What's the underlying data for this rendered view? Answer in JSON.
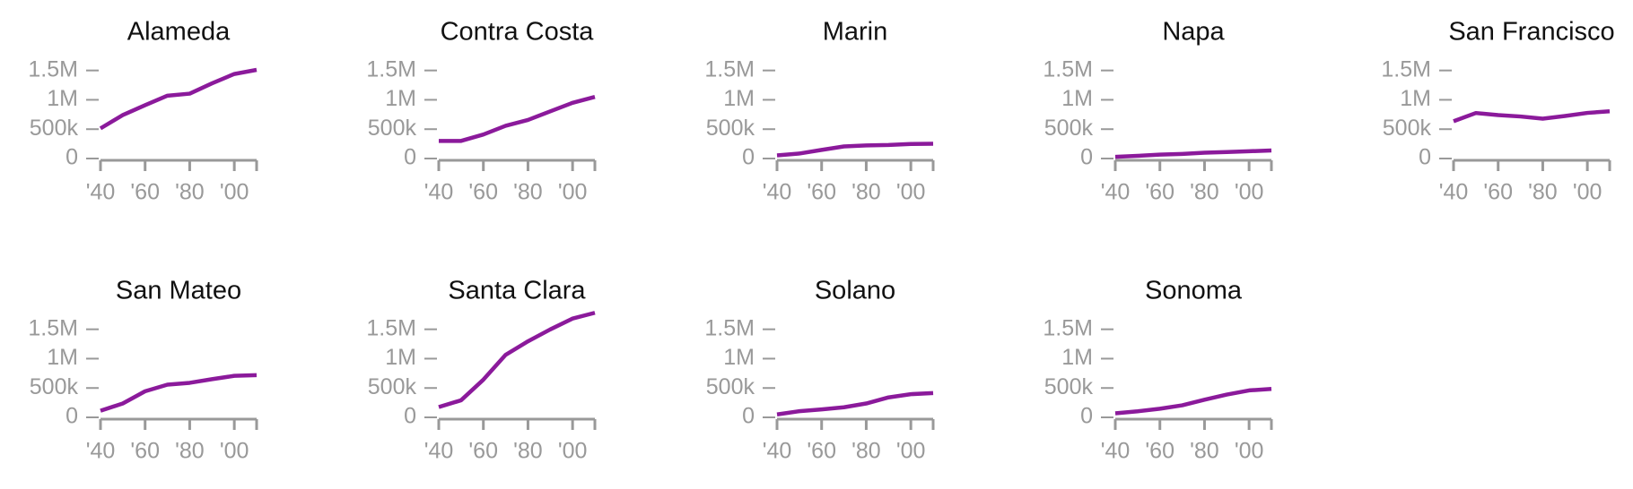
{
  "chart_data": [
    {
      "type": "line",
      "title": "Alameda",
      "x": [
        1940,
        1950,
        1960,
        1970,
        1980,
        1990,
        2000,
        2010
      ],
      "values": [
        513000,
        740000,
        908000,
        1070000,
        1105000,
        1280000,
        1440000,
        1510000
      ],
      "color": "#8b1a9b",
      "xlim": [
        1940,
        2010
      ],
      "ylim": [
        0,
        1800000
      ],
      "xticks": [
        {
          "value": 1940,
          "label": "'40"
        },
        {
          "value": 1960,
          "label": "'60"
        },
        {
          "value": 1980,
          "label": "'80"
        },
        {
          "value": 2000,
          "label": "'00"
        }
      ],
      "yticks": [
        0,
        {
          "value": 500000,
          "label": "500k"
        },
        {
          "value": 1000000,
          "label": "1M"
        },
        {
          "value": 1500000,
          "label": "1.5M"
        }
      ]
    },
    {
      "type": "line",
      "title": "Contra Costa",
      "x": [
        1940,
        1950,
        1960,
        1970,
        1980,
        1990,
        2000,
        2010
      ],
      "values": [
        300000,
        300000,
        409000,
        558000,
        657000,
        804000,
        949000,
        1050000
      ],
      "color": "#8b1a9b",
      "xlim": [
        1940,
        2010
      ],
      "ylim": [
        0,
        1800000
      ],
      "xticks": [
        {
          "value": 1940,
          "label": "'40"
        },
        {
          "value": 1960,
          "label": "'60"
        },
        {
          "value": 1980,
          "label": "'80"
        },
        {
          "value": 2000,
          "label": "'00"
        }
      ],
      "yticks": [
        0,
        {
          "value": 500000,
          "label": "500k"
        },
        {
          "value": 1000000,
          "label": "1M"
        },
        {
          "value": 1500000,
          "label": "1.5M"
        }
      ]
    },
    {
      "type": "line",
      "title": "Marin",
      "x": [
        1940,
        1950,
        1960,
        1970,
        1980,
        1990,
        2000,
        2010
      ],
      "values": [
        53000,
        85000,
        147000,
        206000,
        223000,
        230000,
        247000,
        252000
      ],
      "color": "#8b1a9b",
      "xlim": [
        1940,
        2010
      ],
      "ylim": [
        0,
        1800000
      ],
      "xticks": [
        {
          "value": 1940,
          "label": "'40"
        },
        {
          "value": 1960,
          "label": "'60"
        },
        {
          "value": 1980,
          "label": "'80"
        },
        {
          "value": 2000,
          "label": "'00"
        }
      ],
      "yticks": [
        0,
        {
          "value": 500000,
          "label": "500k"
        },
        {
          "value": 1000000,
          "label": "1M"
        },
        {
          "value": 1500000,
          "label": "1.5M"
        }
      ]
    },
    {
      "type": "line",
      "title": "Napa",
      "x": [
        1940,
        1950,
        1960,
        1970,
        1980,
        1990,
        2000,
        2010
      ],
      "values": [
        29000,
        46000,
        66000,
        79000,
        99000,
        111000,
        124000,
        137000
      ],
      "color": "#8b1a9b",
      "xlim": [
        1940,
        2010
      ],
      "ylim": [
        0,
        1800000
      ],
      "xticks": [
        {
          "value": 1940,
          "label": "'40"
        },
        {
          "value": 1960,
          "label": "'60"
        },
        {
          "value": 1980,
          "label": "'80"
        },
        {
          "value": 2000,
          "label": "'00"
        }
      ],
      "yticks": [
        0,
        {
          "value": 500000,
          "label": "500k"
        },
        {
          "value": 1000000,
          "label": "1M"
        },
        {
          "value": 1500000,
          "label": "1.5M"
        }
      ]
    },
    {
      "type": "line",
      "title": "San Francisco",
      "x": [
        1940,
        1950,
        1960,
        1970,
        1980,
        1990,
        2000,
        2010
      ],
      "values": [
        635000,
        775000,
        740000,
        716000,
        679000,
        724000,
        777000,
        805000
      ],
      "color": "#8b1a9b",
      "xlim": [
        1940,
        2010
      ],
      "ylim": [
        0,
        1800000
      ],
      "xticks": [
        {
          "value": 1940,
          "label": "'40"
        },
        {
          "value": 1960,
          "label": "'60"
        },
        {
          "value": 1980,
          "label": "'80"
        },
        {
          "value": 2000,
          "label": "'00"
        }
      ],
      "yticks": [
        0,
        {
          "value": 500000,
          "label": "500k"
        },
        {
          "value": 1000000,
          "label": "1M"
        },
        {
          "value": 1500000,
          "label": "1.5M"
        }
      ]
    },
    {
      "type": "line",
      "title": "San Mateo",
      "x": [
        1940,
        1950,
        1960,
        1970,
        1980,
        1990,
        2000,
        2010
      ],
      "values": [
        112000,
        236000,
        444000,
        557000,
        588000,
        650000,
        707000,
        718000
      ],
      "color": "#8b1a9b",
      "xlim": [
        1940,
        2010
      ],
      "ylim": [
        0,
        1800000
      ],
      "xticks": [
        {
          "value": 1940,
          "label": "'40"
        },
        {
          "value": 1960,
          "label": "'60"
        },
        {
          "value": 1980,
          "label": "'80"
        },
        {
          "value": 2000,
          "label": "'00"
        }
      ],
      "yticks": [
        0,
        {
          "value": 500000,
          "label": "500k"
        },
        {
          "value": 1000000,
          "label": "1M"
        },
        {
          "value": 1500000,
          "label": "1.5M"
        }
      ]
    },
    {
      "type": "line",
      "title": "Santa Clara",
      "x": [
        1940,
        1950,
        1960,
        1970,
        1980,
        1990,
        2000,
        2010
      ],
      "values": [
        175000,
        291000,
        642000,
        1065000,
        1295000,
        1498000,
        1683000,
        1781000
      ],
      "color": "#8b1a9b",
      "xlim": [
        1940,
        2010
      ],
      "ylim": [
        0,
        1800000
      ],
      "xticks": [
        {
          "value": 1940,
          "label": "'40"
        },
        {
          "value": 1960,
          "label": "'60"
        },
        {
          "value": 1980,
          "label": "'80"
        },
        {
          "value": 2000,
          "label": "'00"
        }
      ],
      "yticks": [
        0,
        {
          "value": 500000,
          "label": "500k"
        },
        {
          "value": 1000000,
          "label": "1M"
        },
        {
          "value": 1500000,
          "label": "1.5M"
        }
      ]
    },
    {
      "type": "line",
      "title": "Solano",
      "x": [
        1940,
        1950,
        1960,
        1970,
        1980,
        1990,
        2000,
        2010
      ],
      "values": [
        49000,
        105000,
        135000,
        172000,
        236000,
        340000,
        395000,
        413000
      ],
      "color": "#8b1a9b",
      "xlim": [
        1940,
        2010
      ],
      "ylim": [
        0,
        1800000
      ],
      "xticks": [
        {
          "value": 1940,
          "label": "'40"
        },
        {
          "value": 1960,
          "label": "'60"
        },
        {
          "value": 1980,
          "label": "'80"
        },
        {
          "value": 2000,
          "label": "'00"
        }
      ],
      "yticks": [
        0,
        {
          "value": 500000,
          "label": "500k"
        },
        {
          "value": 1000000,
          "label": "1M"
        },
        {
          "value": 1500000,
          "label": "1.5M"
        }
      ]
    },
    {
      "type": "line",
      "title": "Sonoma",
      "x": [
        1940,
        1950,
        1960,
        1970,
        1980,
        1990,
        2000,
        2010
      ],
      "values": [
        69000,
        103000,
        147000,
        205000,
        300000,
        388000,
        459000,
        484000
      ],
      "color": "#8b1a9b",
      "xlim": [
        1940,
        2010
      ],
      "ylim": [
        0,
        1800000
      ],
      "xticks": [
        {
          "value": 1940,
          "label": "'40"
        },
        {
          "value": 1960,
          "label": "'60"
        },
        {
          "value": 1980,
          "label": "'80"
        },
        {
          "value": 2000,
          "label": "'00"
        }
      ],
      "yticks": [
        0,
        {
          "value": 500000,
          "label": "500k"
        },
        {
          "value": 1000000,
          "label": "1M"
        },
        {
          "value": 1500000,
          "label": "1.5M"
        }
      ]
    }
  ]
}
